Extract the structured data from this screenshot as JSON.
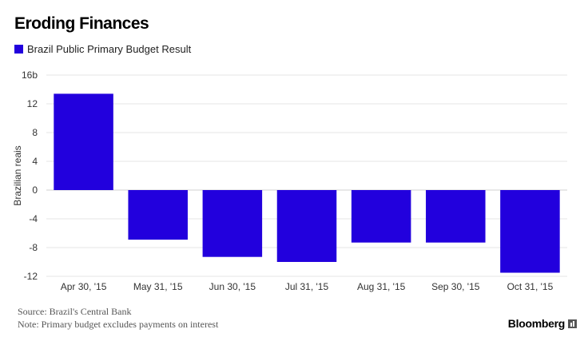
{
  "title": "Eroding Finances",
  "colors": {
    "bar": "#2200DD",
    "grid": "#e6e6e6",
    "axis_text": "#333333"
  },
  "footer": {
    "source": "Source: Brazil's Central Bank",
    "note": "Note: Primary budget excludes payments on interest"
  },
  "brand": {
    "name": "Bloomberg",
    "icon": "bloomberg-terminal-icon"
  },
  "chart_data": {
    "type": "bar",
    "title": "Eroding Finances",
    "ylabel": "Brazilian reais",
    "xlabel": "",
    "ylim": [
      -12,
      16
    ],
    "yticks": [
      16,
      12,
      8,
      4,
      0,
      -4,
      -8,
      -12
    ],
    "ytick_labels": [
      "16b",
      "12",
      "8",
      "4",
      "0",
      "-4",
      "-8",
      "-12"
    ],
    "grid": true,
    "legend": "top-left",
    "categories": [
      "Apr 30, '15",
      "May 31, '15",
      "Jun 30, '15",
      "Jul 31, '15",
      "Aug 31, '15",
      "Sep 30, '15",
      "Oct 31, '15"
    ],
    "series": [
      {
        "name": "Brazil Public Primary Budget Result",
        "values": [
          13.4,
          -6.9,
          -9.3,
          -10.0,
          -7.3,
          -7.3,
          -11.5
        ]
      }
    ]
  }
}
